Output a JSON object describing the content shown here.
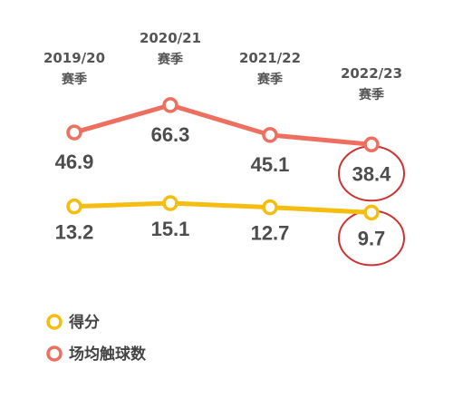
{
  "chart_data": {
    "type": "line",
    "categories": [
      {
        "line1": "2019/20",
        "line2": "赛季"
      },
      {
        "line1": "2020/21",
        "line2": "赛季"
      },
      {
        "line1": "2021/22",
        "line2": "赛季"
      },
      {
        "line1": "2022/23",
        "line2": "赛季"
      }
    ],
    "series": [
      {
        "name": "得分",
        "color": "#f5bd10",
        "values": [
          13.2,
          15.1,
          12.7,
          9.7
        ],
        "labels": [
          "13.2",
          "15.1",
          "12.7",
          "9.7"
        ]
      },
      {
        "name": "场均触球数",
        "color": "#ee6f5f",
        "values": [
          46.9,
          66.3,
          45.1,
          38.4
        ],
        "labels": [
          "46.9",
          "66.3",
          "45.1",
          "38.4"
        ]
      }
    ],
    "highlight": {
      "category_index": 3,
      "color": "#cc3333"
    },
    "legend": "bottom-left",
    "grid": false
  }
}
